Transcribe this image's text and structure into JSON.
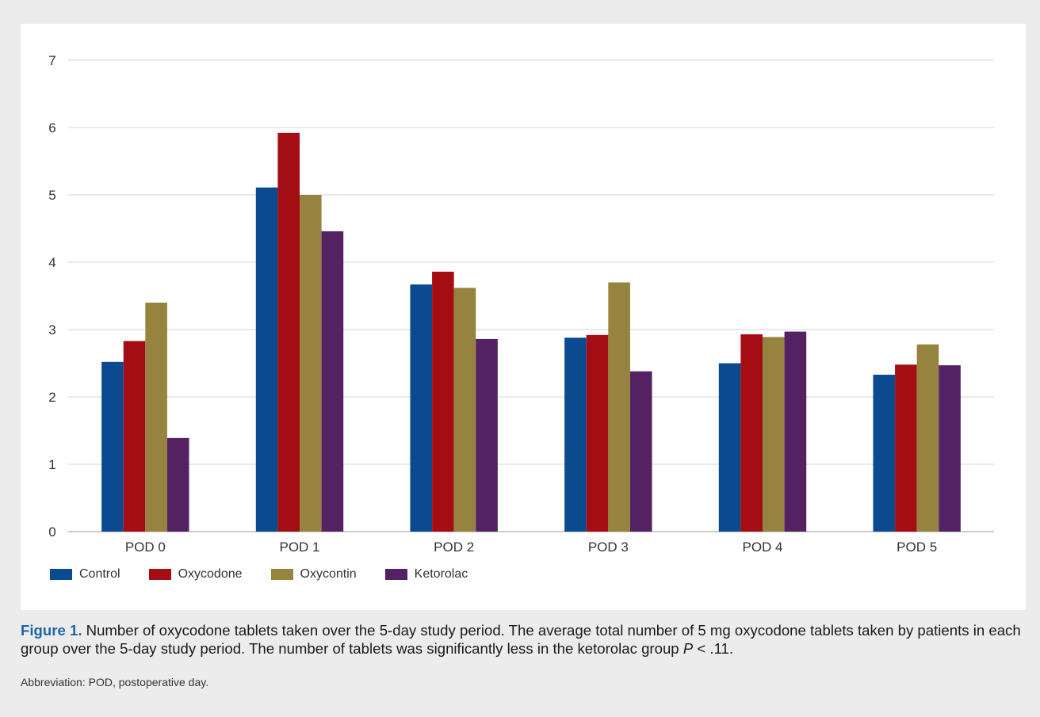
{
  "chart_data": {
    "type": "bar",
    "categories": [
      "POD 0",
      "POD 1",
      "POD 2",
      "POD 3",
      "POD 4",
      "POD 5"
    ],
    "series": [
      {
        "name": "Control",
        "color": "#0b4a8f",
        "values": [
          2.52,
          5.11,
          3.67,
          2.88,
          2.5,
          2.33
        ]
      },
      {
        "name": "Oxycodone",
        "color": "#a50d14",
        "values": [
          2.83,
          5.92,
          3.86,
          2.92,
          2.93,
          2.48
        ]
      },
      {
        "name": "Oxycontin",
        "color": "#96833f",
        "values": [
          3.4,
          5.0,
          3.62,
          3.7,
          2.89,
          2.78
        ]
      },
      {
        "name": "Ketorolac",
        "color": "#542263",
        "values": [
          1.39,
          4.46,
          2.86,
          2.38,
          2.97,
          2.47
        ]
      }
    ],
    "yticks": [
      0,
      1,
      2,
      3,
      4,
      5,
      6,
      7
    ],
    "ylim": [
      0,
      7
    ],
    "grid": true,
    "legend_position": "bottom-left"
  },
  "caption": {
    "figure_label": "Figure 1.",
    "text": " Number of oxycodone tablets taken over the 5-day study period. The average total number of 5 mg oxycodone tablets taken by patients in each group over the 5-day study period. The number of tablets was significantly less in the ketorolac group ",
    "p_label": "P",
    "p_value": " < .11."
  },
  "abbreviation": "Abbreviation: POD, postoperative day."
}
